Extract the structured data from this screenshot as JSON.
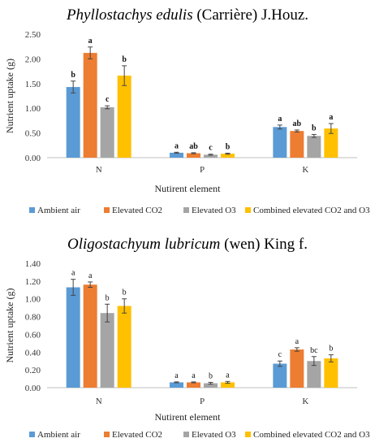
{
  "chart_data": [
    {
      "type": "bar",
      "title_italic": "Phyllostachys edulis",
      "title_rest": " (Carrière) J.Houz.",
      "title_letter_style": "bold",
      "xlabel": "Nutirent element",
      "ylabel": "Nutrient uptake (g)",
      "ylim": [
        0,
        2.5
      ],
      "y_ticks": [
        "0.00",
        "0.50",
        "1.00",
        "1.50",
        "2.00",
        "2.50"
      ],
      "grid": false,
      "legend_position": "bottom",
      "categories": [
        "N",
        "P",
        "K"
      ],
      "series": [
        {
          "name": "Ambient air",
          "values": [
            1.43,
            0.1,
            0.62
          ],
          "errors": [
            0.12,
            0.01,
            0.04
          ],
          "letters": [
            "b",
            "a",
            "a"
          ]
        },
        {
          "name": "Elevated CO2",
          "values": [
            2.12,
            0.09,
            0.54
          ],
          "errors": [
            0.12,
            0.01,
            0.02
          ],
          "letters": [
            "a",
            "ab",
            "ab"
          ]
        },
        {
          "name": "Elevated O3",
          "values": [
            1.02,
            0.06,
            0.44
          ],
          "errors": [
            0.03,
            0.01,
            0.03
          ],
          "letters": [
            "c",
            "c",
            "b"
          ]
        },
        {
          "name": "Combined elevated CO2 and O3",
          "values": [
            1.66,
            0.08,
            0.59
          ],
          "errors": [
            0.2,
            0.01,
            0.1
          ],
          "letters": [
            "b",
            "b",
            "a"
          ]
        }
      ]
    },
    {
      "type": "bar",
      "title_italic": "Oligostachyum lubricum",
      "title_rest": " (wen) King f.",
      "title_letter_style": "normal",
      "xlabel": "Nutirent element",
      "ylabel": "Nutrient uptake (g)",
      "ylim": [
        0,
        1.4
      ],
      "y_ticks": [
        "0.00",
        "0.20",
        "0.40",
        "0.60",
        "0.80",
        "1.00",
        "1.20",
        "1.40"
      ],
      "grid": false,
      "legend_position": "bottom",
      "categories": [
        "N",
        "P",
        "K"
      ],
      "series": [
        {
          "name": "Ambient air",
          "values": [
            1.13,
            0.06,
            0.27
          ],
          "errors": [
            0.09,
            0.005,
            0.03
          ],
          "letters": [
            "a",
            "a",
            "c"
          ]
        },
        {
          "name": "Elevated CO2",
          "values": [
            1.16,
            0.06,
            0.43
          ],
          "errors": [
            0.03,
            0.005,
            0.02
          ],
          "letters": [
            "a",
            "a",
            "a"
          ]
        },
        {
          "name": "Elevated O3",
          "values": [
            0.84,
            0.05,
            0.3
          ],
          "errors": [
            0.1,
            0.01,
            0.05
          ],
          "letters": [
            "b",
            "b",
            "bc"
          ]
        },
        {
          "name": "Combined elevated CO2 and O3",
          "values": [
            0.92,
            0.06,
            0.33
          ],
          "errors": [
            0.08,
            0.01,
            0.04
          ],
          "letters": [
            "b",
            "a",
            "b"
          ]
        }
      ]
    }
  ],
  "colors": [
    "#5B9BD5",
    "#ED7D31",
    "#A5A5A5",
    "#FFC000"
  ]
}
